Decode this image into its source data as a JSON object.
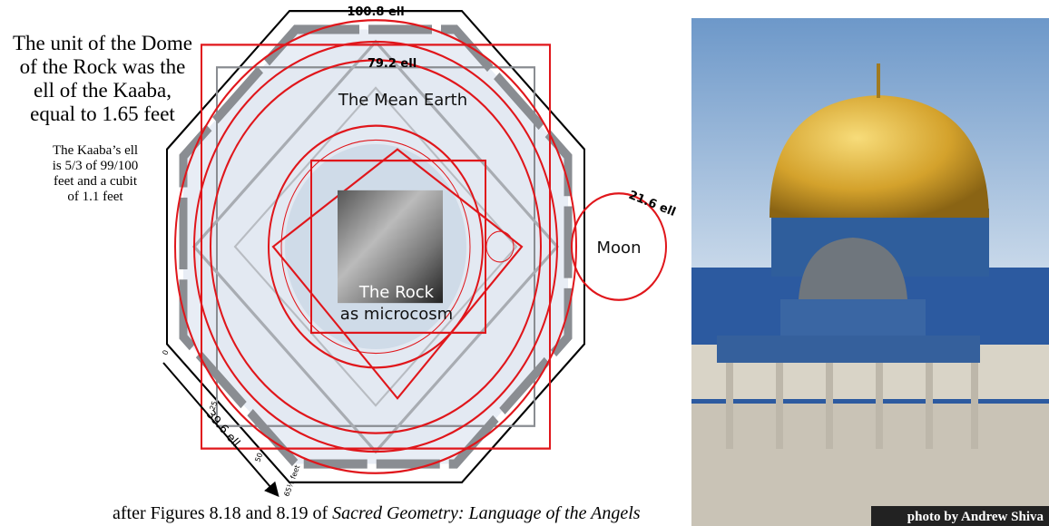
{
  "intro": {
    "heading_lines": [
      "The unit of the Dome",
      "of the Rock was the",
      "ell of the Kaaba,",
      "equal to 1.65 feet"
    ],
    "note_lines": [
      "The Kaaba’s ell",
      "is 5/3 of 99/100",
      "feet and a cubit",
      "of 1.1 feet"
    ]
  },
  "diagram": {
    "outer_label": "100.8 ell",
    "square_label": "79.2 ell",
    "earth_label": "The Mean Earth",
    "moon_size_label": "21.6 ell",
    "moon_label": "Moon",
    "rock_label_lines": [
      "The Rock",
      "as microcosm"
    ],
    "scale": {
      "ell_label": "39.6 ell",
      "ticks": [
        "0",
        "25",
        "50",
        "65½ feet"
      ]
    }
  },
  "caption": {
    "text": "after Figures 8.18 and 8.19 of ",
    "book_title": "Sacred Geometry: Language of the Angels"
  },
  "photo": {
    "credit": "photo by Andrew Shiva"
  }
}
